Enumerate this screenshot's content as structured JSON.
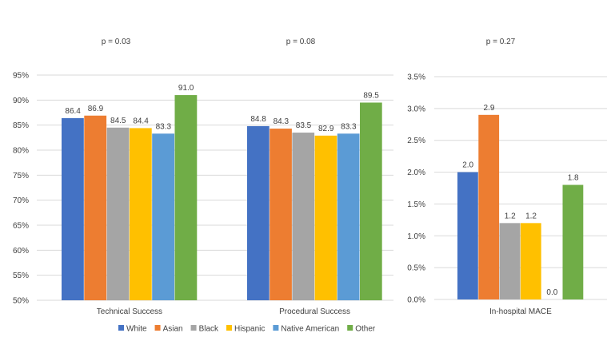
{
  "chart_data": [
    {
      "type": "bar",
      "title": "p = 0.03 / p = 0.08",
      "p_values": [
        "p = 0.03",
        "p = 0.08"
      ],
      "categories": [
        "Technical Success",
        "Procedural Success"
      ],
      "ylim": [
        50,
        95
      ],
      "yticks": [
        "50%",
        "55%",
        "60%",
        "65%",
        "70%",
        "75%",
        "80%",
        "85%",
        "90%",
        "95%"
      ],
      "ytick_values": [
        50,
        55,
        60,
        65,
        70,
        75,
        80,
        85,
        90,
        95
      ],
      "grid": true,
      "series": [
        {
          "name": "White",
          "values": [
            86.4,
            84.8
          ]
        },
        {
          "name": "Asian",
          "values": [
            86.9,
            84.3
          ]
        },
        {
          "name": "Black",
          "values": [
            84.5,
            83.5
          ]
        },
        {
          "name": "Hispanic",
          "values": [
            84.4,
            82.9
          ]
        },
        {
          "name": "Native American",
          "values": [
            83.3,
            83.3
          ]
        },
        {
          "name": "Other",
          "values": [
            91.0,
            89.5
          ]
        }
      ],
      "labels": [
        [
          "86.4",
          "84.8"
        ],
        [
          "86.9",
          "84.3"
        ],
        [
          "84.5",
          "83.5"
        ],
        [
          "84.4",
          "82.9"
        ],
        [
          "83.3",
          "83.3"
        ],
        [
          "91.0",
          "89.5"
        ]
      ]
    },
    {
      "type": "bar",
      "p_values": [
        "p = 0.27"
      ],
      "categories": [
        "In-hospital MACE"
      ],
      "ylim": [
        0,
        3.5
      ],
      "yticks": [
        "0.0%",
        "0.5%",
        "1.0%",
        "1.5%",
        "2.0%",
        "2.5%",
        "3.0%",
        "3.5%"
      ],
      "ytick_values": [
        0,
        0.5,
        1,
        1.5,
        2,
        2.5,
        3,
        3.5
      ],
      "grid": true,
      "series": [
        {
          "name": "White",
          "values": [
            2.0
          ]
        },
        {
          "name": "Asian",
          "values": [
            2.9
          ]
        },
        {
          "name": "Black",
          "values": [
            1.2
          ]
        },
        {
          "name": "Hispanic",
          "values": [
            1.2
          ]
        },
        {
          "name": "Native American",
          "values": [
            0.0
          ]
        },
        {
          "name": "Other",
          "values": [
            1.8
          ]
        }
      ],
      "labels": [
        [
          "2.0"
        ],
        [
          "2.9"
        ],
        [
          "1.2"
        ],
        [
          "1.2"
        ],
        [
          "0.0"
        ],
        [
          "1.8"
        ]
      ]
    }
  ],
  "legend": {
    "placement": "bottom",
    "items": [
      "White",
      "Asian",
      "Black",
      "Hispanic",
      "Native American",
      "Other"
    ]
  },
  "colors": [
    "#4472c4",
    "#ed7d31",
    "#a5a5a5",
    "#ffc000",
    "#5b9bd5",
    "#70ad47"
  ]
}
